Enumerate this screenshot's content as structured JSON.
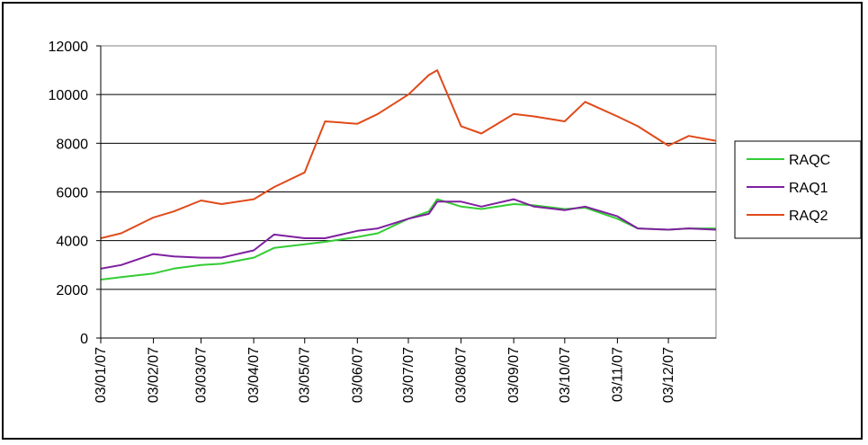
{
  "chart_data": {
    "type": "line",
    "title": "",
    "xlabel": "",
    "ylabel": "",
    "ylim": [
      0,
      12000
    ],
    "yticks": [
      0,
      2000,
      4000,
      6000,
      8000,
      10000,
      12000
    ],
    "xtick_labels": [
      "03/01/07",
      "03/02/07",
      "03/03/07",
      "03/04/07",
      "03/05/07",
      "03/06/07",
      "03/07/07",
      "03/08/07",
      "03/09/07",
      "03/10/07",
      "03/11/07",
      "03/12/07"
    ],
    "grid": "horizontal",
    "legend_position": "right",
    "x": [
      "03/01/07",
      "15/01/07",
      "03/02/07",
      "15/02/07",
      "03/03/07",
      "15/03/07",
      "03/04/07",
      "15/04/07",
      "03/05/07",
      "15/05/07",
      "03/06/07",
      "15/06/07",
      "03/07/07",
      "15/07/07",
      "20/07/07",
      "03/08/07",
      "15/08/07",
      "03/09/07",
      "15/09/07",
      "03/10/07",
      "15/10/07",
      "03/11/07",
      "15/11/07",
      "03/12/07",
      "15/12/07",
      "31/12/07"
    ],
    "series": [
      {
        "name": "RAQC",
        "color": "#33cc33",
        "values": [
          2400,
          2500,
          2650,
          2850,
          3000,
          3050,
          3300,
          3700,
          3850,
          3950,
          4150,
          4300,
          4900,
          5200,
          5700,
          5400,
          5300,
          5500,
          5450,
          5300,
          5350,
          4900,
          4500,
          4450,
          4500,
          4500
        ]
      },
      {
        "name": "RAQ1",
        "color": "#7f1f9f",
        "values": [
          2850,
          3000,
          3450,
          3350,
          3300,
          3300,
          3600,
          4250,
          4100,
          4100,
          4400,
          4500,
          4900,
          5100,
          5600,
          5600,
          5400,
          5700,
          5400,
          5250,
          5400,
          5000,
          4500,
          4450,
          4500,
          4450
        ]
      },
      {
        "name": "RAQ2",
        "color": "#e04a1a",
        "values": [
          4100,
          4300,
          4950,
          5200,
          5650,
          5500,
          5700,
          6200,
          6800,
          8900,
          8800,
          9200,
          10000,
          10800,
          11000,
          8700,
          8400,
          9200,
          9100,
          8900,
          9700,
          9100,
          8700,
          7900,
          8300,
          8100
        ]
      }
    ]
  }
}
